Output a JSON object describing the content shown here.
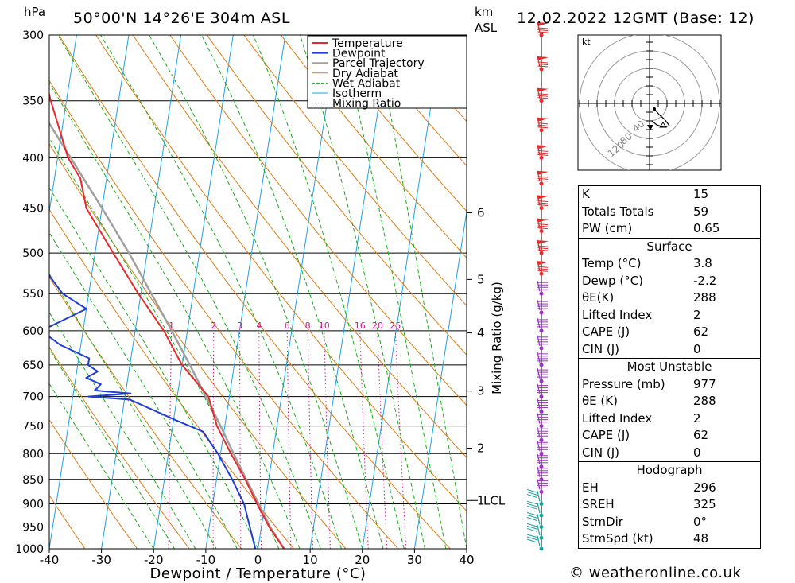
{
  "header": {
    "location": "50°00'N  14°26'E  304m  ASL",
    "datetime": "12.02.2022  12GMT  (Base: 12)",
    "hpa_label": "hPa",
    "km_label": "km",
    "asl_label": "ASL",
    "copyright": "© weatheronline.co.uk"
  },
  "chart_data": {
    "type": "line",
    "subtype": "skew-t log-p",
    "xlabel": "Dewpoint / Temperature (°C)",
    "ylabel_right": "Mixing Ratio (g/kg)",
    "x_ticks": [
      "-40",
      "-30",
      "-20",
      "-10",
      "0",
      "10",
      "20",
      "30",
      "40"
    ],
    "pressure_ticks": [
      "300",
      "350",
      "400",
      "450",
      "500",
      "550",
      "600",
      "650",
      "700",
      "750",
      "800",
      "850",
      "900",
      "950",
      "1000"
    ],
    "height_ticks": [
      {
        "km": "6",
        "p": 455
      },
      {
        "km": "5",
        "p": 532
      },
      {
        "km": "4",
        "p": 603
      },
      {
        "km": "3",
        "p": 691
      },
      {
        "km": "2",
        "p": 790
      },
      {
        "km": "1",
        "p": 893
      }
    ],
    "lcl_label": "LCL",
    "lcl_pressure": 893,
    "mixing_ratio_labels": [
      "1",
      "2",
      "3",
      "4",
      "6",
      "8",
      "10",
      "16",
      "20",
      "25"
    ],
    "legend": [
      "Temperature",
      "Dewpoint",
      "Parcel Trajectory",
      "Dry Adiabat",
      "Wet Adiabat",
      "Isotherm",
      "Mixing Ratio"
    ],
    "colors": {
      "temperature": "#e8292b",
      "dewpoint": "#1f3dd6",
      "parcel": "#a0a0a0",
      "dry_adiabat": "#e07b10",
      "wet_adiabat": "#16b016",
      "isotherm": "#1ea0e0",
      "mixing_ratio": "#d0188c"
    },
    "temperature": [
      [
        1000,
        5
      ],
      [
        950,
        1.5
      ],
      [
        900,
        -1.5
      ],
      [
        850,
        -4.5
      ],
      [
        800,
        -8
      ],
      [
        750,
        -11.5
      ],
      [
        700,
        -14
      ],
      [
        650,
        -20
      ],
      [
        600,
        -24.5
      ],
      [
        550,
        -30.5
      ],
      [
        500,
        -36.5
      ],
      [
        450,
        -43
      ],
      [
        420,
        -45
      ],
      [
        400,
        -48
      ],
      [
        350,
        -53
      ],
      [
        300,
        -58
      ]
    ],
    "dewpoint": [
      [
        1000,
        -0.5
      ],
      [
        950,
        -2.2
      ],
      [
        900,
        -4
      ],
      [
        850,
        -7
      ],
      [
        800,
        -10.5
      ],
      [
        760,
        -14
      ],
      [
        740,
        -19.5
      ],
      [
        705,
        -29
      ],
      [
        700,
        -37
      ],
      [
        695,
        -29
      ],
      [
        690,
        -36
      ],
      [
        680,
        -35
      ],
      [
        670,
        -38
      ],
      [
        660,
        -36
      ],
      [
        650,
        -38
      ],
      [
        640,
        -38
      ],
      [
        620,
        -44
      ],
      [
        600,
        -48
      ],
      [
        570,
        -40
      ],
      [
        550,
        -45
      ],
      [
        500,
        -52
      ],
      [
        450,
        -57
      ],
      [
        420,
        -64
      ],
      [
        400,
        -70
      ],
      [
        350,
        -73
      ],
      [
        300,
        -75
      ]
    ],
    "parcel": [
      [
        1000,
        5
      ],
      [
        950,
        1.7
      ],
      [
        893,
        -1.6
      ],
      [
        850,
        -4.3
      ],
      [
        800,
        -7.5
      ],
      [
        750,
        -10.8
      ],
      [
        700,
        -14.5
      ],
      [
        650,
        -18.5
      ],
      [
        600,
        -23
      ],
      [
        550,
        -28
      ],
      [
        500,
        -33.5
      ],
      [
        450,
        -40
      ],
      [
        400,
        -47.5
      ],
      [
        350,
        -56
      ],
      [
        300,
        -66
      ]
    ],
    "wind_barb_levels": [
      "1000",
      "975",
      "950",
      "925",
      "900",
      "875",
      "850",
      "825",
      "800",
      "775",
      "750",
      "725",
      "700",
      "675",
      "650",
      "625",
      "600",
      "575",
      "550",
      "525",
      "500",
      "475",
      "450",
      "425",
      "400",
      "375",
      "350",
      "325",
      "300"
    ]
  },
  "hodograph": {
    "unit": "kt",
    "ring_labels": [
      "40",
      "80",
      "120"
    ]
  },
  "indices": {
    "general": [
      {
        "label": "K",
        "value": "15"
      },
      {
        "label": "Totals Totals",
        "value": "59"
      },
      {
        "label": "PW (cm)",
        "value": "0.65"
      }
    ],
    "surface_title": "Surface",
    "surface": [
      {
        "label": "Temp (°C)",
        "value": "3.8"
      },
      {
        "label": "Dewp (°C)",
        "value": "-2.2"
      },
      {
        "label": "θE(K)",
        "value": "288"
      },
      {
        "label": "Lifted Index",
        "value": "2"
      },
      {
        "label": "CAPE (J)",
        "value": "62"
      },
      {
        "label": "CIN (J)",
        "value": "0"
      }
    ],
    "mu_title": "Most Unstable",
    "most_unstable": [
      {
        "label": "Pressure (mb)",
        "value": "977"
      },
      {
        "label": "θE (K)",
        "value": "288"
      },
      {
        "label": "Lifted Index",
        "value": "2"
      },
      {
        "label": "CAPE (J)",
        "value": "62"
      },
      {
        "label": "CIN (J)",
        "value": "0"
      }
    ],
    "hodo_title": "Hodograph",
    "hodograph": [
      {
        "label": "EH",
        "value": "296"
      },
      {
        "label": "SREH",
        "value": "325"
      },
      {
        "label": "StmDir",
        "value": "0°"
      },
      {
        "label": "StmSpd (kt)",
        "value": "48"
      }
    ]
  }
}
